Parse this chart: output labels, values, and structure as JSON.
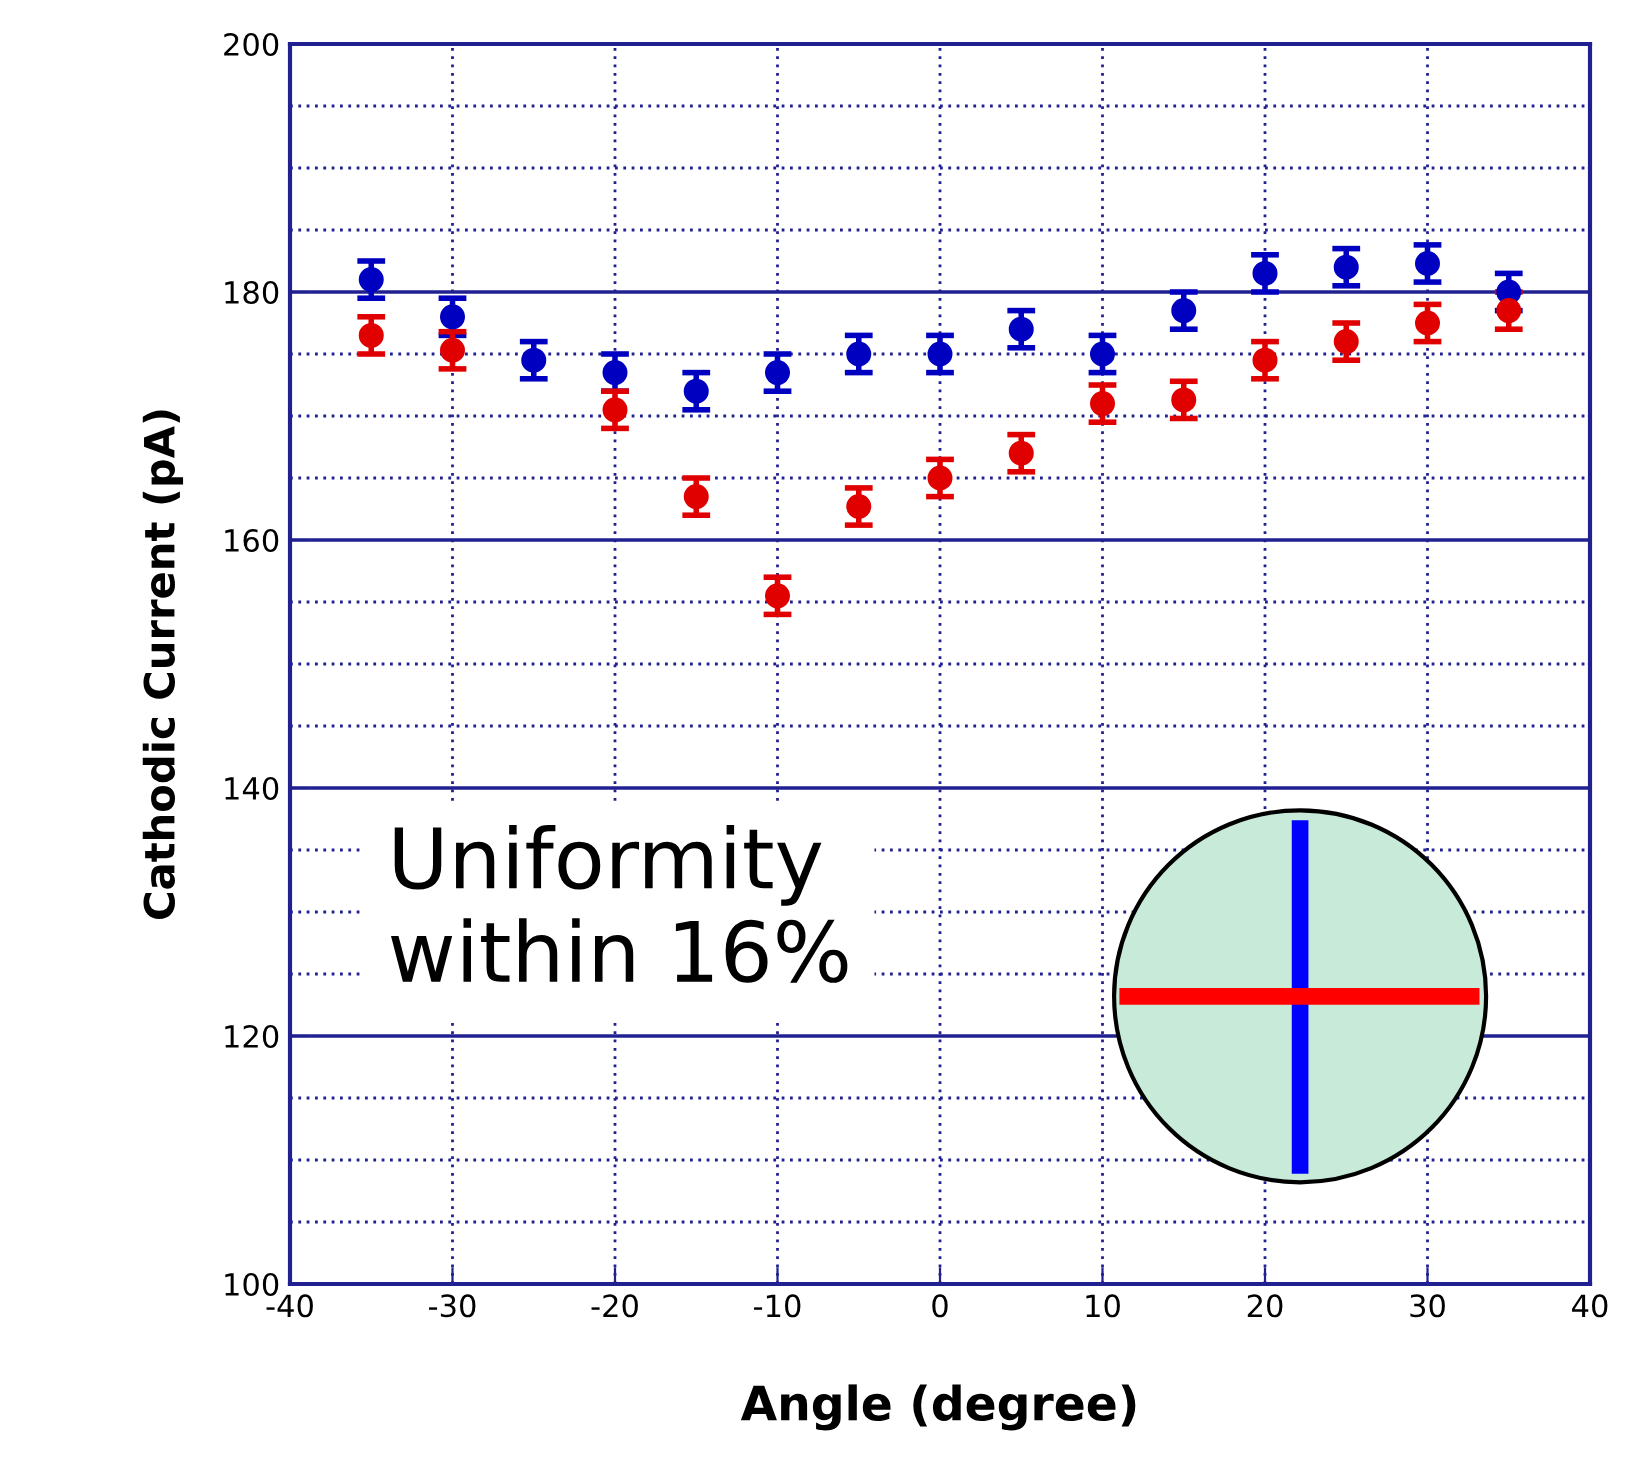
{
  "chart_data": {
    "type": "scatter",
    "xlabel": "Angle (degree)",
    "ylabel": "Cathodic Current (pA)",
    "x": [
      -35,
      -30,
      -25,
      -20,
      -15,
      -10,
      -5,
      0,
      5,
      10,
      15,
      20,
      25,
      30,
      35
    ],
    "series": [
      {
        "color": "#0000c0",
        "values": [
          181,
          178,
          174.5,
          173.5,
          172,
          173.5,
          175,
          175,
          177,
          175,
          178.5,
          181.5,
          182,
          182.3,
          180
        ],
        "errors": [
          1.5,
          1.5,
          1.5,
          1.5,
          1.5,
          1.5,
          1.5,
          1.5,
          1.5,
          1.5,
          1.5,
          1.5,
          1.5,
          1.5,
          1.5
        ]
      },
      {
        "color": "#e00000",
        "values": [
          176.5,
          175.3,
          null,
          170.5,
          163.5,
          155.5,
          162.7,
          165,
          167,
          171,
          171.3,
          174.5,
          176,
          177.5,
          178.5
        ],
        "errors": [
          1.5,
          1.5,
          null,
          1.5,
          1.5,
          1.5,
          1.5,
          1.5,
          1.5,
          1.5,
          1.5,
          1.5,
          1.5,
          1.5,
          1.5
        ]
      }
    ],
    "xlim": [
      -40,
      40
    ],
    "xticks": [
      -40,
      -30,
      -20,
      -10,
      0,
      10,
      20,
      30,
      40
    ],
    "ylim": [
      100,
      200
    ],
    "yticks": [
      100,
      120,
      140,
      160,
      180,
      200
    ],
    "grid": true,
    "marker": "circle",
    "annotations": [
      "Uniformity\nwithin 16%"
    ]
  }
}
